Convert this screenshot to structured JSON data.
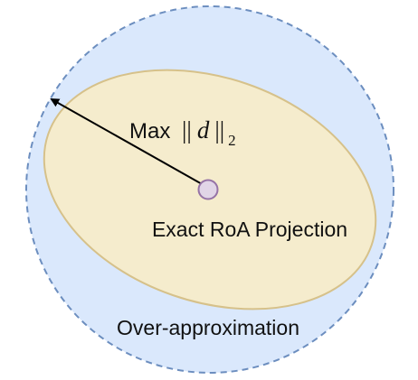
{
  "diagram": {
    "max_label": "Max",
    "norm_bars_left": "||",
    "norm_variable": "d",
    "norm_bars_right": "||",
    "norm_subscript": "2",
    "center_label": "Exact RoA Projection",
    "outer_label": "Over-approximation"
  },
  "colors": {
    "outer_fill": "#dae8fc",
    "outer_stroke": "#6c8ebf",
    "ellipse_fill": "#f5eccd",
    "ellipse_stroke": "#d6c18a",
    "center_fill": "#e1d5e7",
    "center_stroke": "#9673a6",
    "arrow": "#000000"
  }
}
